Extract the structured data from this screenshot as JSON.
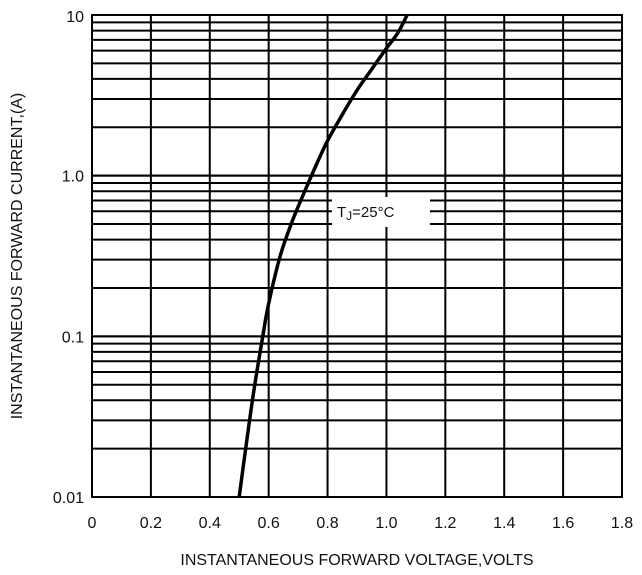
{
  "chart_data": {
    "type": "line",
    "xlabel": "INSTANTANEOUS FORWARD VOLTAGE,VOLTS",
    "ylabel": "INSTANTANEOUS FORWARD CURRENT,(A)",
    "xlim": [
      0,
      1.8
    ],
    "ylim": [
      0.01,
      10
    ],
    "yscale": "log",
    "grid": true,
    "x_ticks": [
      0,
      0.2,
      0.4,
      0.6,
      0.8,
      1.0,
      1.2,
      1.4,
      1.6,
      1.8
    ],
    "x_tick_labels": [
      "0",
      "0.2",
      "0.4",
      "0.6",
      "0.8",
      "1.0",
      "1.2",
      "1.4",
      "1.6",
      "1.8"
    ],
    "y_ticks": [
      0.01,
      0.1,
      1,
      10
    ],
    "y_tick_labels": [
      "0.01",
      "0.1",
      "1.0",
      "10"
    ],
    "annotation": {
      "prefix": "T",
      "subscript": "J",
      "suffix": "=25°C"
    },
    "series": [
      {
        "x": [
          0.5,
          0.525,
          0.55,
          0.58,
          0.6,
          0.64,
          0.68,
          0.72,
          0.76,
          0.8,
          0.85,
          0.9,
          0.95,
          1.0,
          1.04,
          1.07
        ],
        "y": [
          0.01,
          0.022,
          0.046,
          0.1,
          0.16,
          0.32,
          0.52,
          0.78,
          1.15,
          1.65,
          2.4,
          3.4,
          4.6,
          6.2,
          7.8,
          10
        ]
      }
    ]
  }
}
